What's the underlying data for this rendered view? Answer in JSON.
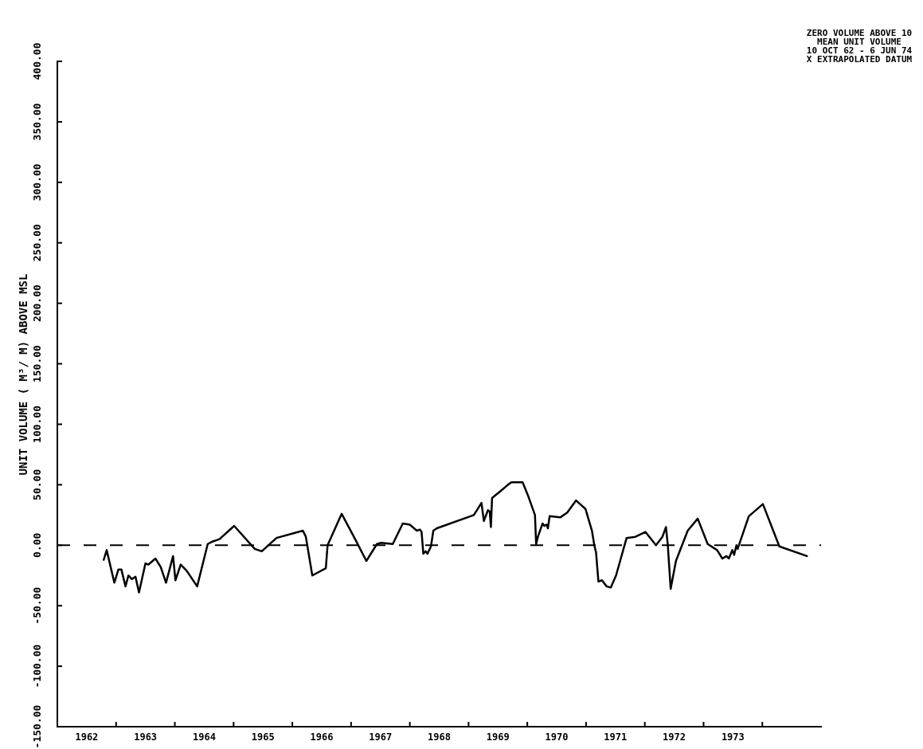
{
  "chart_data": {
    "type": "line",
    "ylabel": "UNIT VOLUME ( M³/ M) ABOVE MSL",
    "annotations": [
      "ZERO VOLUME ABOVE 10",
      "MEAN UNIT VOLUME",
      "10 OCT 62 - 6 JUN 74",
      "X EXTRAPOLATED DATUM"
    ],
    "x": [
      1962.79,
      1962.84,
      1962.97,
      1963.04,
      1963.09,
      1963.16,
      1963.21,
      1963.27,
      1963.33,
      1963.39,
      1963.5,
      1963.55,
      1963.67,
      1963.76,
      1963.85,
      1963.97,
      1964.01,
      1964.1,
      1964.2,
      1964.38,
      1964.56,
      1964.64,
      1964.76,
      1965.01,
      1965.36,
      1965.48,
      1965.73,
      1966.18,
      1966.23,
      1966.34,
      1966.57,
      1966.6,
      1966.84,
      1967.08,
      1967.26,
      1967.44,
      1967.51,
      1967.71,
      1967.88,
      1968.0,
      1968.12,
      1968.17,
      1968.2,
      1968.23,
      1968.27,
      1968.3,
      1968.36,
      1968.4,
      1968.46,
      1969.09,
      1969.22,
      1969.26,
      1969.33,
      1969.36,
      1969.38,
      1969.4,
      1969.55,
      1969.67,
      1969.73,
      1969.92,
      1970.02,
      1970.13,
      1970.15,
      1970.18,
      1970.26,
      1970.29,
      1970.33,
      1970.35,
      1970.38,
      1970.56,
      1970.68,
      1970.83,
      1970.99,
      1971.1,
      1971.14,
      1971.17,
      1971.21,
      1971.27,
      1971.35,
      1971.42,
      1971.51,
      1971.69,
      1971.84,
      1972.01,
      1972.19,
      1972.3,
      1972.36,
      1972.39,
      1972.44,
      1972.53,
      1972.73,
      1972.9,
      1973.07,
      1973.23,
      1973.32,
      1973.39,
      1973.43,
      1973.49,
      1973.52,
      1973.56,
      1973.58,
      1973.77,
      1974.01,
      1974.29,
      1974.76
    ],
    "values": [
      -12,
      -4,
      -31,
      -20,
      -20,
      -34,
      -25,
      -28,
      -26,
      -39,
      -15,
      -16,
      -11,
      -18,
      -31,
      -9,
      -29,
      -16,
      -21,
      -34,
      1,
      3,
      5,
      16,
      -3,
      -5,
      6,
      12,
      7,
      -25,
      -19,
      0,
      26,
      4,
      -13,
      1,
      2,
      1,
      18,
      17,
      12,
      13,
      11,
      -7,
      -5,
      -7,
      -1,
      12,
      14,
      25,
      35,
      20,
      29,
      28,
      15,
      39,
      45,
      50,
      52,
      52,
      40,
      25,
      1,
      7,
      18,
      16,
      17,
      14,
      24,
      23,
      27,
      37,
      30,
      12,
      0,
      -6,
      -30,
      -29,
      -34,
      -35,
      -25,
      6,
      7,
      11,
      0,
      7,
      15,
      1,
      -36,
      -13,
      12,
      22,
      1,
      -4,
      -11,
      -9,
      -11,
      -4,
      -8,
      0,
      -3,
      24,
      34,
      -1,
      -9
    ],
    "color": "#000000",
    "xlim": [
      1962,
      1975
    ],
    "xticks": [
      {
        "value": 1962.5,
        "label": "1962"
      },
      {
        "value": 1963,
        "label": null
      },
      {
        "value": 1963.5,
        "label": "1963"
      },
      {
        "value": 1964,
        "label": null
      },
      {
        "value": 1964.5,
        "label": "1964"
      },
      {
        "value": 1965,
        "label": null
      },
      {
        "value": 1965.5,
        "label": "1965"
      },
      {
        "value": 1966,
        "label": null
      },
      {
        "value": 1966.5,
        "label": "1966"
      },
      {
        "value": 1967,
        "label": null
      },
      {
        "value": 1967.5,
        "label": "1967"
      },
      {
        "value": 1968,
        "label": null
      },
      {
        "value": 1968.5,
        "label": "1968"
      },
      {
        "value": 1969,
        "label": null
      },
      {
        "value": 1969.5,
        "label": "1969"
      },
      {
        "value": 1970,
        "label": null
      },
      {
        "value": 1970.5,
        "label": "1970"
      },
      {
        "value": 1971,
        "label": null
      },
      {
        "value": 1971.5,
        "label": "1971"
      },
      {
        "value": 1972,
        "label": null
      },
      {
        "value": 1972.5,
        "label": "1972"
      },
      {
        "value": 1973,
        "label": null
      },
      {
        "value": 1973.5,
        "label": "1973"
      },
      {
        "value": 1974,
        "label": null
      }
    ],
    "ylim": [
      -150,
      400
    ],
    "yticks": [
      {
        "value": -150,
        "label": "-150.00"
      },
      {
        "value": -100,
        "label": "-100.00"
      },
      {
        "value": -50,
        "label": "-50.00"
      },
      {
        "value": 0,
        "label": "0.00"
      },
      {
        "value": 50,
        "label": "50.00"
      },
      {
        "value": 100,
        "label": "100.00"
      },
      {
        "value": 150,
        "label": "150.00"
      },
      {
        "value": 200,
        "label": "200.00"
      },
      {
        "value": 250,
        "label": "250.00"
      },
      {
        "value": 300,
        "label": "300.00"
      },
      {
        "value": 350,
        "label": "350.00"
      },
      {
        "value": 400,
        "label": "400.00"
      }
    ],
    "ref_lines": [
      {
        "axis": "y",
        "value": 0,
        "color": "#000000",
        "line_style": "dashed"
      }
    ]
  }
}
